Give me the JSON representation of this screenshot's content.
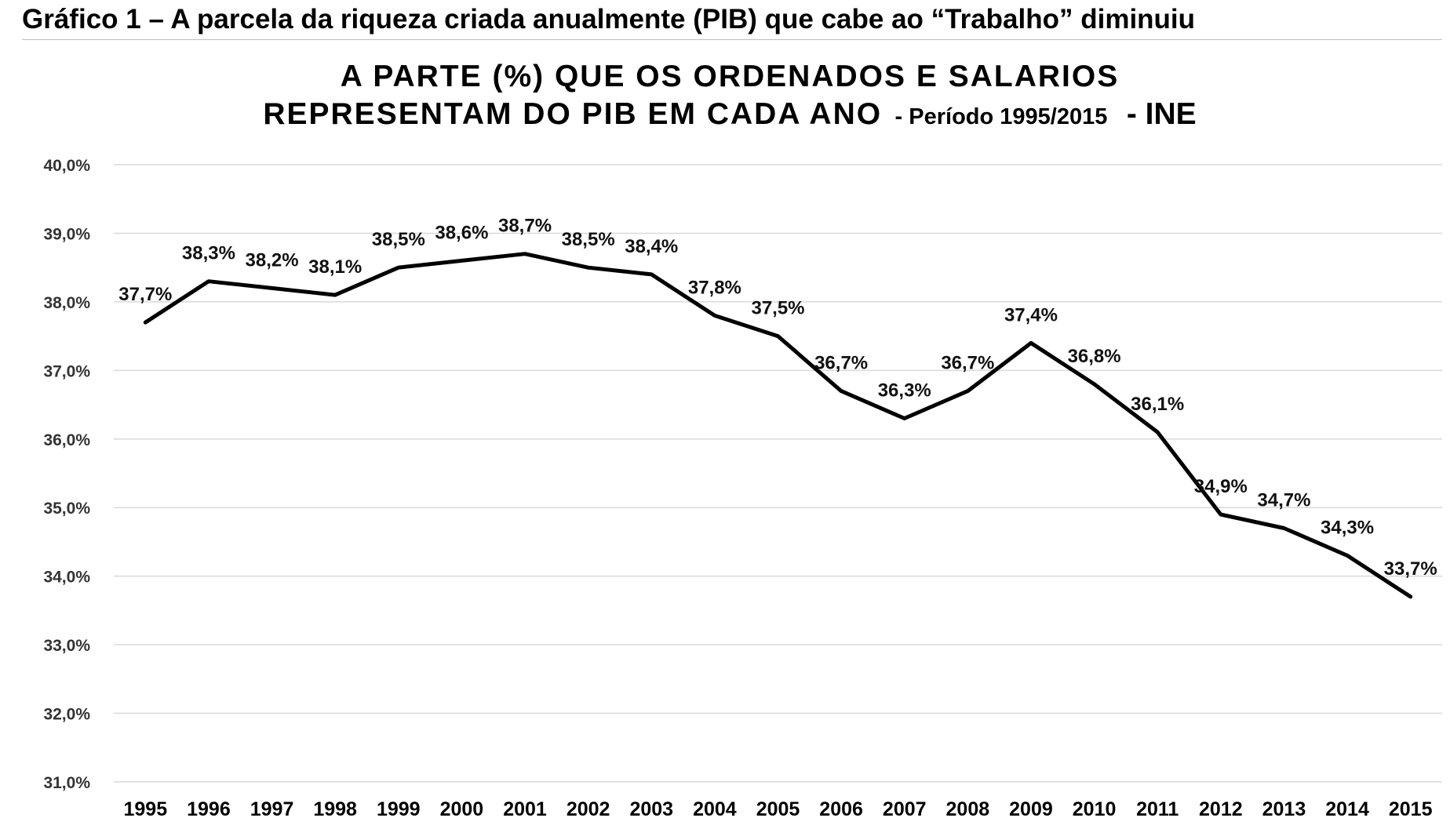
{
  "figure": {
    "caption": "Gráfico 1 – A parcela da riqueza criada anualmente (PIB) que cabe ao “Trabalho” diminuiu"
  },
  "chart_data": {
    "type": "line",
    "title": {
      "line1": "A PARTE (%) QUE OS ORDENADOS E SALARIOS",
      "line2_main": "REPRESENTAM DO PIB EM CADA ANO",
      "line2_period": "- Período 1995/2015",
      "line2_source": "- INE"
    },
    "xlabel": "",
    "ylabel": "",
    "ylim": [
      31.0,
      40.0
    ],
    "yticks": [
      "40,0%",
      "39,0%",
      "38,0%",
      "37,0%",
      "36,0%",
      "35,0%",
      "34,0%",
      "33,0%",
      "32,0%",
      "31,0%"
    ],
    "grid": true,
    "legend": "none",
    "categories": [
      "1995",
      "1996",
      "1997",
      "1998",
      "1999",
      "2000",
      "2001",
      "2002",
      "2003",
      "2004",
      "2005",
      "2006",
      "2007",
      "2008",
      "2009",
      "2010",
      "2011",
      "2012",
      "2013",
      "2014",
      "2015"
    ],
    "series": [
      {
        "values": [
          37.7,
          38.3,
          38.2,
          38.1,
          38.5,
          38.6,
          38.7,
          38.5,
          38.4,
          37.8,
          37.5,
          36.7,
          36.3,
          36.7,
          37.4,
          36.8,
          36.1,
          34.9,
          34.7,
          34.3,
          33.7
        ],
        "labels": [
          "37,7%",
          "38,3%",
          "38,2%",
          "38,1%",
          "38,5%",
          "38,6%",
          "38,7%",
          "38,5%",
          "38,4%",
          "37,8%",
          "37,5%",
          "36,7%",
          "36,3%",
          "36,7%",
          "37,4%",
          "36,8%",
          "36,1%",
          "34,9%",
          "34,7%",
          "34,3%",
          "33,7%"
        ]
      }
    ],
    "colors": {
      "line": "#000000",
      "grid": "#d9d9d9"
    }
  }
}
